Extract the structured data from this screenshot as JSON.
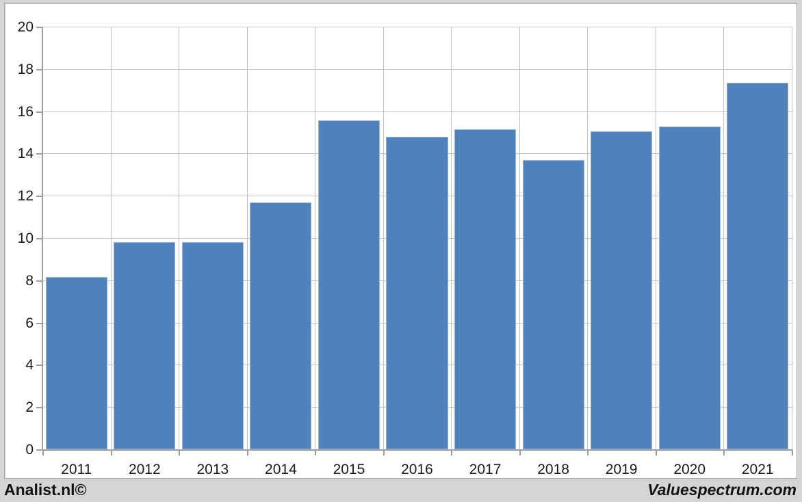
{
  "window": {
    "background_color": "#d5d5d5",
    "panel_color": "#ffffff",
    "panel_border_color": "#a6a6a6"
  },
  "footer": {
    "left_text": "Analist.nl©",
    "right_text": "Valuespectrum.com",
    "text_color": "#121212"
  },
  "chart_data": {
    "type": "bar",
    "title": "",
    "xlabel": "",
    "ylabel": "",
    "categories": [
      "2011",
      "2012",
      "2013",
      "2014",
      "2015",
      "2016",
      "2017",
      "2018",
      "2019",
      "2020",
      "2021"
    ],
    "values": [
      8.15,
      9.8,
      9.8,
      11.67,
      15.57,
      14.8,
      15.15,
      13.7,
      15.05,
      15.28,
      17.35
    ],
    "ylim": [
      0,
      20
    ],
    "ytick_step": 2,
    "ytick_labels": [
      "0",
      "2",
      "4",
      "6",
      "8",
      "10",
      "12",
      "14",
      "16",
      "18",
      "20"
    ],
    "grid": true,
    "legend": false,
    "colors": {
      "bar_fill": "#4f81bd",
      "bar_edge": "#9ab8dc",
      "gridline": "#c3c3c3",
      "axis_line": "#9e9e9e",
      "label_text": "#1a1a1a"
    }
  }
}
